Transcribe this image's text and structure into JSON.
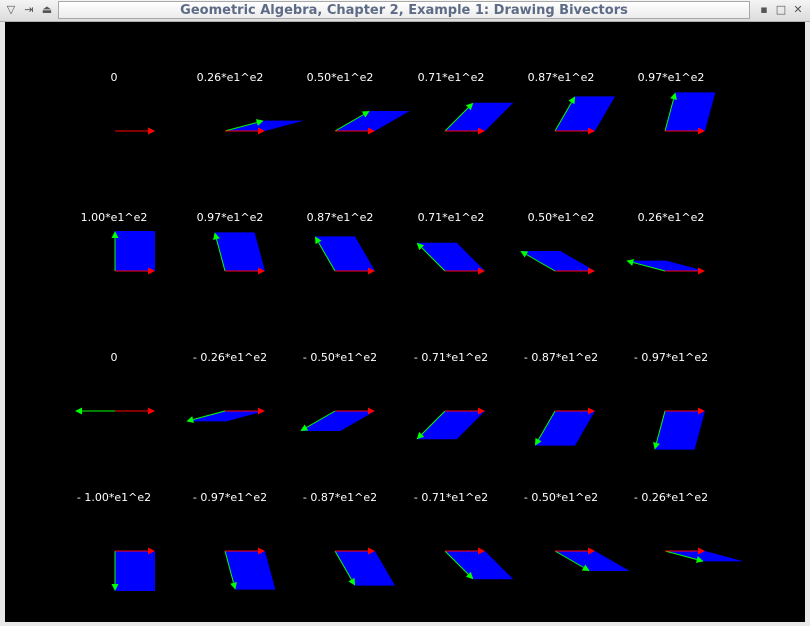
{
  "window": {
    "title": "Geometric Algebra, Chapter 2, Example 1: Drawing Bivectors",
    "left_icons": [
      "menu-down-icon",
      "pin-icon",
      "shade-icon"
    ],
    "right_icons": [
      "minimize-icon",
      "maximize-icon",
      "close-icon"
    ]
  },
  "colors": {
    "background": "#000000",
    "bivector_fill": "#0000ff",
    "e1_arrow": "#ff0000",
    "e2_arrow": "#00ff00",
    "label": "#ffffff"
  },
  "rows": [
    {
      "angle_sign": 1,
      "angle_offset_deg": 0,
      "labels": [
        "0",
        "0.26*e1^e2",
        "0.50*e1^e2",
        "0.71*e1^e2",
        "0.87*e1^e2",
        "0.97*e1^e2"
      ]
    },
    {
      "angle_sign": 1,
      "angle_offset_deg": 90,
      "labels": [
        "1.00*e1^e2",
        "0.97*e1^e2",
        "0.87*e1^e2",
        "0.71*e1^e2",
        "0.50*e1^e2",
        "0.26*e1^e2"
      ]
    },
    {
      "angle_sign": -1,
      "angle_offset_deg": 180,
      "labels": [
        "0",
        "- 0.26*e1^e2",
        "- 0.50*e1^e2",
        "- 0.71*e1^e2",
        "- 0.87*e1^e2",
        "- 0.97*e1^e2"
      ]
    },
    {
      "angle_sign": -1,
      "angle_offset_deg": 270,
      "labels": [
        "- 1.00*e1^e2",
        "- 0.97*e1^e2",
        "- 0.87*e1^e2",
        "- 0.71*e1^e2",
        "- 0.50*e1^e2",
        "- 0.26*e1^e2"
      ]
    }
  ],
  "angle_step_deg": 15
}
